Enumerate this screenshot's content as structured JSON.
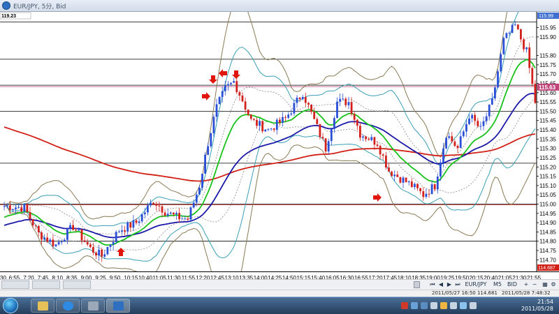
{
  "window": {
    "title": "EUR/JPY, 5分, Bid",
    "top_left_price": "119.23",
    "top_right_price": "115.99"
  },
  "chart": {
    "last_price": "115.63",
    "bottom_price": "114.687",
    "colors": {
      "up_candle": "#2a4fd6",
      "down_candle": "#d2201c",
      "ema_slow": "#d11f16",
      "ema_mid": "#1a19a8",
      "ema_fast": "#19c11b",
      "bb_outer": "#8a7a55",
      "bb_inner": "#3a9fb5",
      "midline": "#888888",
      "arrow": "#e0150c"
    },
    "price_labels": [
      "115.95",
      "115.90",
      "115.80",
      "115.75",
      "115.70",
      "115.65",
      "115.60",
      "115.55",
      "115.50",
      "115.45",
      "115.40",
      "115.35",
      "115.30",
      "115.25",
      "115.20",
      "115.15",
      "115.10",
      "115.05",
      "115.00",
      "114.95",
      "114.90",
      "114.85",
      "114.80",
      "114.75",
      "114.70"
    ],
    "horizontal_levels": [
      115.98,
      115.78,
      115.64,
      115.5,
      115.22,
      115.0,
      114.8
    ],
    "price_range": [
      114.66,
      116.02
    ]
  },
  "time_axis": {
    "labels": [
      "30",
      "6:55",
      "7:20",
      "7:45",
      "8:10",
      "8:35",
      "9:00",
      "9:25",
      "9:50",
      "10:15",
      "10:40",
      "11:05",
      "11:30",
      "11:55",
      "12:20",
      "12:45",
      "13:10",
      "13:35",
      "14:00",
      "14:25",
      "14:50",
      "15:15",
      "15:40",
      "16:05",
      "16:30",
      "16:55",
      "17:20",
      "17:45",
      "18:10",
      "18:35",
      "19:00",
      "19:25",
      "19:50",
      "20:15",
      "20:40",
      "21:05",
      "21:30",
      "21:55"
    ]
  },
  "toolbar": {
    "symbol": "EUR/JPY",
    "timeframe": "M5",
    "price_type": "BID"
  },
  "status": {
    "left": "2011/05/27 16:50 114.681",
    "right": "2011/05/28 7:48:32"
  },
  "taskbar": {
    "time": "21:54",
    "date": "2011/05/28"
  }
}
